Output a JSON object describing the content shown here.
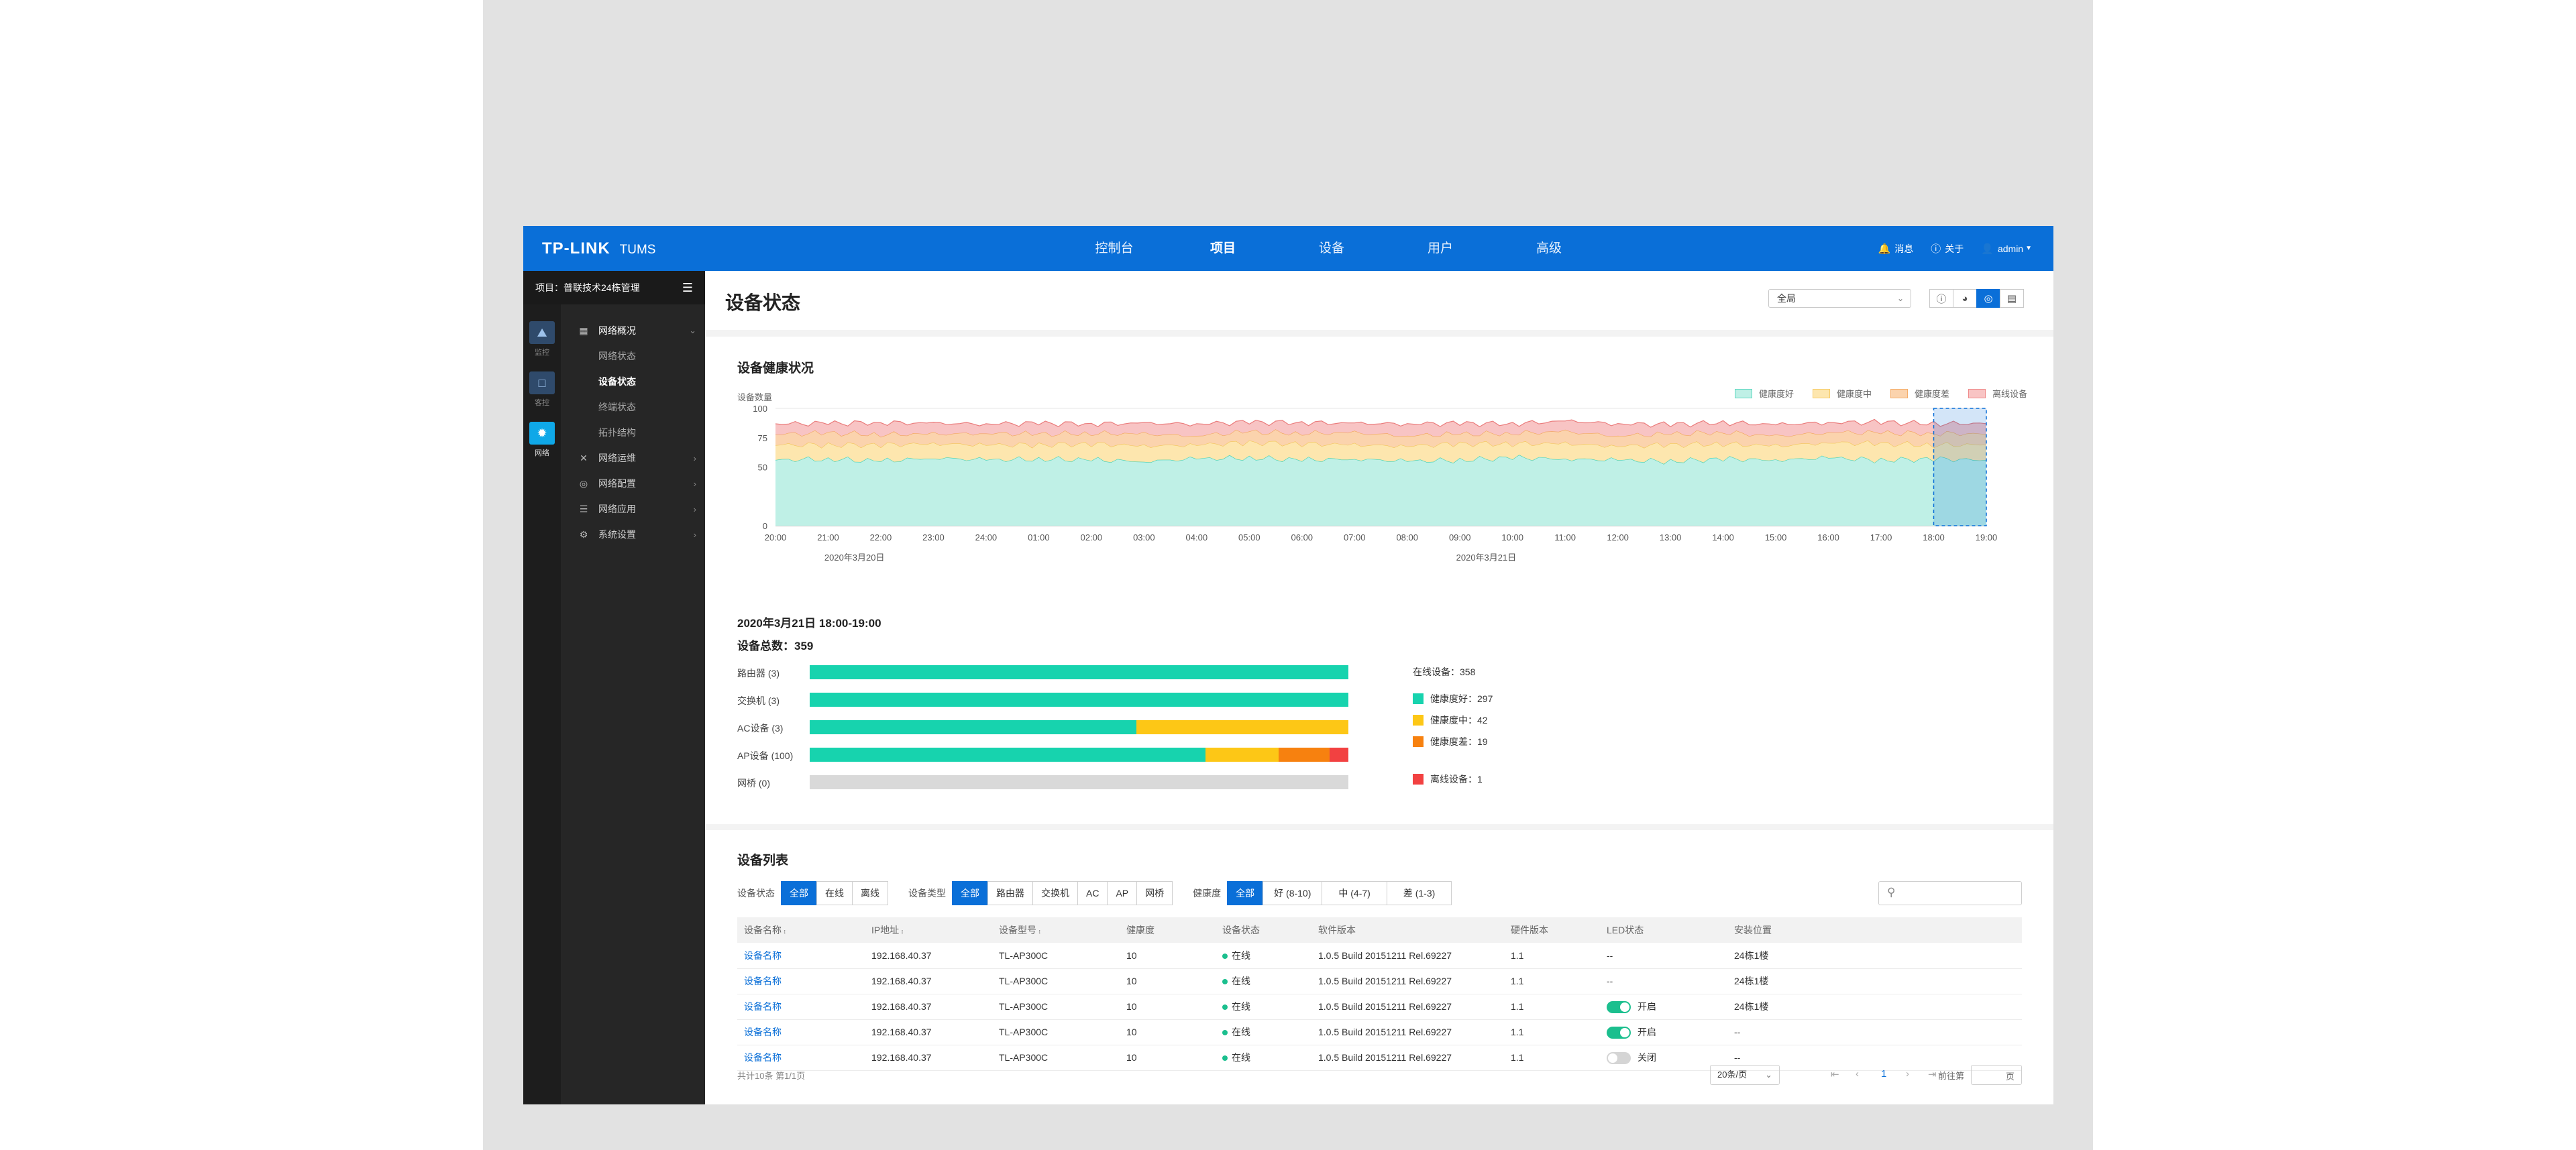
{
  "topbar": {
    "logo": "TP-LINK",
    "product": "TUMS",
    "nav": [
      "控制台",
      "项目",
      "设备",
      "用户",
      "高级"
    ],
    "active_nav": "项目",
    "messages": "消息",
    "about": "关于",
    "user": "admin"
  },
  "sidebar": {
    "project_label": "项目：普联技术24栋管理",
    "rail": [
      "监控",
      "客控",
      "网络"
    ],
    "groups": [
      {
        "label": "网络概况",
        "icon": "overview-icon"
      },
      {
        "label": "网络运维",
        "icon": "tools-icon"
      },
      {
        "label": "网络配置",
        "icon": "globe-icon"
      },
      {
        "label": "网络应用",
        "icon": "layers-icon"
      },
      {
        "label": "系统设置",
        "icon": "gear-icon"
      }
    ],
    "subitems": [
      "网络状态",
      "设备状态",
      "终端状态",
      "拓扑结构"
    ],
    "active_sub": "设备状态"
  },
  "page": {
    "title": "设备状态",
    "scope": "全局"
  },
  "health": {
    "title": "设备健康状况",
    "ylabel": "设备数量",
    "summary_date": "2020年3月21日  18:00-19:00",
    "summary_total": "设备总数：359"
  },
  "chart_data": {
    "type": "area",
    "title": "设备健康状况",
    "ylabel": "设备数量",
    "ylim": [
      0,
      100
    ],
    "yticks": [
      0,
      50,
      75,
      100
    ],
    "x": [
      "20:00",
      "21:00",
      "22:00",
      "23:00",
      "24:00",
      "01:00",
      "02:00",
      "03:00",
      "04:00",
      "05:00",
      "06:00",
      "07:00",
      "08:00",
      "09:00",
      "10:00",
      "11:00",
      "12:00",
      "13:00",
      "14:00",
      "15:00",
      "16:00",
      "17:00",
      "18:00",
      "19:00"
    ],
    "date_labels": [
      "2020年3月20日",
      "2020年3月21日"
    ],
    "stacked": true,
    "series": [
      {
        "name": "健康度好",
        "color": "#bff0e6",
        "values": [
          56,
          57,
          55,
          58,
          56,
          57,
          56,
          55,
          57,
          58,
          56,
          57,
          55,
          56,
          58,
          57,
          56,
          55,
          57,
          56,
          58,
          56,
          57,
          56
        ]
      },
      {
        "name": "健康度中",
        "color": "#fde6ae",
        "values": [
          13,
          12,
          14,
          12,
          13,
          12,
          14,
          13,
          12,
          13,
          14,
          12,
          13,
          14,
          12,
          13,
          12,
          14,
          13,
          12,
          13,
          14,
          12,
          13
        ]
      },
      {
        "name": "健康度差",
        "color": "#fbd3ad",
        "values": [
          9,
          10,
          9,
          8,
          10,
          9,
          9,
          10,
          8,
          9,
          9,
          10,
          9,
          8,
          9,
          10,
          9,
          9,
          10,
          8,
          9,
          9,
          10,
          9
        ]
      },
      {
        "name": "离线设备",
        "color": "#f8c4c4",
        "values": [
          9,
          8,
          10,
          9,
          8,
          9,
          8,
          9,
          10,
          8,
          9,
          8,
          10,
          9,
          8,
          9,
          10,
          8,
          8,
          10,
          8,
          9,
          8,
          9
        ]
      }
    ],
    "highlight_range": [
      "18:00",
      "19:00"
    ]
  },
  "bars": [
    {
      "label": "路由器 (3)",
      "segments": [
        1,
        0,
        0,
        0
      ]
    },
    {
      "label": "交换机 (3)",
      "segments": [
        1,
        0,
        0,
        0
      ]
    },
    {
      "label": "AC设备 (3)",
      "segments": [
        0.607,
        0.393,
        0,
        0
      ]
    },
    {
      "label": "AP设备 (100)",
      "segments": [
        0.735,
        0.135,
        0.095,
        0.035
      ]
    },
    {
      "label": "网桥 (0)",
      "segments": [
        0,
        0,
        0,
        0
      ]
    }
  ],
  "bar_colors": [
    "#17d3ae",
    "#fdc716",
    "#f7810f",
    "#f24141"
  ],
  "stats": {
    "online": "在线设备：358",
    "good": "健康度好：297",
    "mid": "健康度中：42",
    "bad": "健康度差：19",
    "offline": "离线设备：1"
  },
  "device_list": {
    "title": "设备列表",
    "filter_status": {
      "label": "设备状态",
      "options": [
        "全部",
        "在线",
        "离线"
      ]
    },
    "filter_type": {
      "label": "设备类型",
      "options": [
        "全部",
        "路由器",
        "交换机",
        "AC",
        "AP",
        "网桥"
      ]
    },
    "filter_health": {
      "label": "健康度",
      "options": [
        "全部",
        "好 (8-10)",
        "中 (4-7)",
        "差 (1-3)"
      ]
    },
    "columns": [
      "设备名称",
      "IP地址",
      "设备型号",
      "健康度",
      "设备状态",
      "软件版本",
      "硬件版本",
      "LED状态",
      "安装位置"
    ],
    "rows": [
      {
        "name": "设备名称",
        "ip": "192.168.40.37",
        "model": "TL-AP300C",
        "health": "10",
        "status": "在线",
        "sw": "1.0.5 Build 20151211 Rel.69227",
        "hw": "1.1",
        "led": "--",
        "location": "24栋1楼"
      },
      {
        "name": "设备名称",
        "ip": "192.168.40.37",
        "model": "TL-AP300C",
        "health": "10",
        "status": "在线",
        "sw": "1.0.5 Build 20151211 Rel.69227",
        "hw": "1.1",
        "led": "--",
        "location": "24栋1楼"
      },
      {
        "name": "设备名称",
        "ip": "192.168.40.37",
        "model": "TL-AP300C",
        "health": "10",
        "status": "在线",
        "sw": "1.0.5 Build 20151211 Rel.69227",
        "hw": "1.1",
        "led": "开启",
        "location": "24栋1楼"
      },
      {
        "name": "设备名称",
        "ip": "192.168.40.37",
        "model": "TL-AP300C",
        "health": "10",
        "status": "在线",
        "sw": "1.0.5 Build 20151211 Rel.69227",
        "hw": "1.1",
        "led": "开启",
        "location": "--"
      },
      {
        "name": "设备名称",
        "ip": "192.168.40.37",
        "model": "TL-AP300C",
        "health": "10",
        "status": "在线",
        "sw": "1.0.5 Build 20151211 Rel.69227",
        "hw": "1.1",
        "led": "关闭",
        "location": "--"
      }
    ],
    "total": "共计10条  第1/1页",
    "page_size": "20条/页",
    "current_page": "1",
    "goto_label": "前往第",
    "goto_unit": "页"
  }
}
